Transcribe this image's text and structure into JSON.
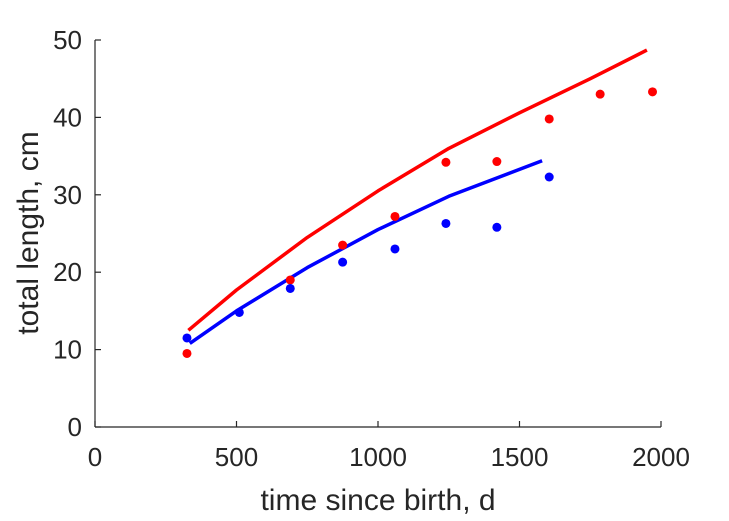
{
  "chart_data": {
    "type": "scatter",
    "title": "",
    "xlabel": "time since birth, d",
    "ylabel": "total length, cm",
    "xlim": [
      0,
      2000
    ],
    "ylim": [
      0,
      50
    ],
    "xticks": [
      0,
      500,
      1000,
      1500,
      2000
    ],
    "yticks": [
      0,
      10,
      20,
      30,
      40,
      50
    ],
    "grid": false,
    "series": [
      {
        "kind": "points",
        "color": "#ff0000",
        "x": [
          325,
          690,
          875,
          1060,
          1240,
          1420,
          1605,
          1785,
          1970
        ],
        "y": [
          9.5,
          19.0,
          23.5,
          27.2,
          34.2,
          34.3,
          39.8,
          43.0,
          43.3
        ]
      },
      {
        "kind": "points",
        "color": "#0000ff",
        "x": [
          325,
          510,
          690,
          875,
          1060,
          1240,
          1420,
          1605
        ],
        "y": [
          11.5,
          14.8,
          17.9,
          21.3,
          23.0,
          26.3,
          25.8,
          32.3
        ]
      },
      {
        "kind": "line",
        "color": "#ff0000",
        "x": [
          330,
          500,
          750,
          1000,
          1250,
          1500,
          1750,
          1950
        ],
        "y": [
          12.5,
          17.7,
          24.5,
          30.5,
          36.0,
          40.6,
          45.0,
          48.7
        ]
      },
      {
        "kind": "line",
        "color": "#0000ff",
        "x": [
          335,
          500,
          750,
          1000,
          1250,
          1580
        ],
        "y": [
          10.8,
          15.0,
          20.6,
          25.5,
          29.8,
          34.4
        ]
      }
    ]
  }
}
